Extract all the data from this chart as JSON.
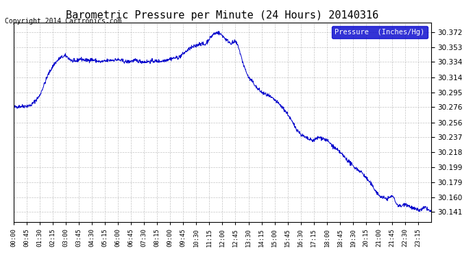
{
  "title": "Barometric Pressure per Minute (24 Hours) 20140316",
  "copyright": "Copyright 2014 Cartronics.com",
  "legend_label": "Pressure  (Inches/Hg)",
  "bg_color": "#ffffff",
  "line_color": "#0000cc",
  "grid_color": "#aaaaaa",
  "ylabel_color": "#000000",
  "yticks": [
    30.141,
    30.16,
    30.179,
    30.199,
    30.218,
    30.237,
    30.256,
    30.276,
    30.295,
    30.314,
    30.334,
    30.353,
    30.372
  ],
  "ylim": [
    30.128,
    30.385
  ],
  "xtick_labels": [
    "00:00",
    "00:45",
    "01:30",
    "02:15",
    "03:00",
    "03:45",
    "04:30",
    "05:15",
    "06:00",
    "06:45",
    "07:30",
    "08:15",
    "09:00",
    "09:45",
    "10:30",
    "11:15",
    "12:00",
    "12:45",
    "13:30",
    "14:15",
    "15:00",
    "15:45",
    "16:30",
    "17:15",
    "18:00",
    "18:45",
    "19:30",
    "20:15",
    "21:00",
    "21:45",
    "22:30",
    "23:15"
  ],
  "data_description": "barometric pressure readings every minute for 24 hours on 20140316"
}
